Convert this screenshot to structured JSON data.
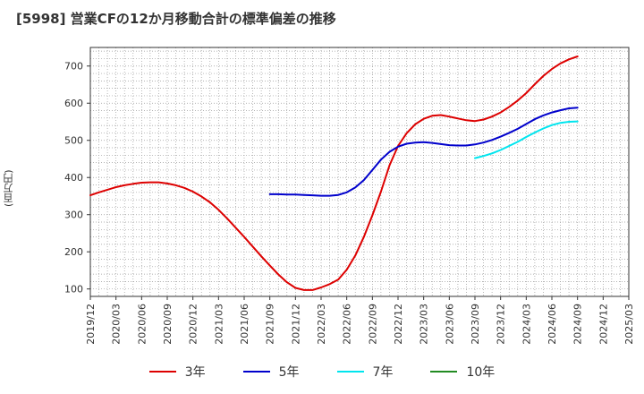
{
  "chart_data": {
    "type": "line",
    "title": "[5998]  営業CFの12か月移動合計の標準偏差の推移",
    "ylabel": "(百万円)",
    "xlabel": "",
    "ylim": [
      80,
      750
    ],
    "yticks": [
      100,
      200,
      300,
      400,
      500,
      600,
      700
    ],
    "xticks": [
      "2019/12",
      "2020/03",
      "2020/06",
      "2020/09",
      "2020/12",
      "2021/03",
      "2021/06",
      "2021/09",
      "2021/12",
      "2022/03",
      "2022/06",
      "2022/09",
      "2022/12",
      "2023/03",
      "2023/06",
      "2023/09",
      "2023/12",
      "2024/03",
      "2024/06",
      "2024/09",
      "2024/12",
      "2025/03"
    ],
    "grid": true,
    "legend_position": "bottom",
    "series": [
      {
        "name": "3年",
        "color": "#dd0000",
        "x": [
          "2019/12",
          "2020/01",
          "2020/02",
          "2020/03",
          "2020/04",
          "2020/05",
          "2020/06",
          "2020/07",
          "2020/08",
          "2020/09",
          "2020/10",
          "2020/11",
          "2020/12",
          "2021/01",
          "2021/02",
          "2021/03",
          "2021/04",
          "2021/05",
          "2021/06",
          "2021/07",
          "2021/08",
          "2021/09",
          "2021/10",
          "2021/11",
          "2021/12",
          "2022/01",
          "2022/02",
          "2022/03",
          "2022/04",
          "2022/05",
          "2022/06",
          "2022/07",
          "2022/08",
          "2022/09",
          "2022/10",
          "2022/11",
          "2022/12",
          "2023/01",
          "2023/02",
          "2023/03",
          "2023/04",
          "2023/05",
          "2023/06",
          "2023/07",
          "2023/08",
          "2023/09",
          "2023/10",
          "2023/11",
          "2023/12",
          "2024/01",
          "2024/02",
          "2024/03",
          "2024/04",
          "2024/05",
          "2024/06",
          "2024/07",
          "2024/08",
          "2024/09"
        ],
        "values": [
          352,
          360,
          367,
          374,
          379,
          383,
          386,
          387,
          387,
          384,
          379,
          372,
          362,
          349,
          333,
          313,
          290,
          265,
          240,
          214,
          188,
          163,
          139,
          118,
          103,
          97,
          97,
          104,
          113,
          125,
          152,
          190,
          240,
          298,
          362,
          432,
          485,
          519,
          543,
          558,
          566,
          568,
          564,
          559,
          554,
          552,
          556,
          564,
          575,
          590,
          607,
          627,
          651,
          673,
          692,
          707,
          718,
          726
        ]
      },
      {
        "name": "5年",
        "color": "#0000cc",
        "x": [
          "2021/09",
          "2021/10",
          "2021/11",
          "2021/12",
          "2022/01",
          "2022/02",
          "2022/03",
          "2022/04",
          "2022/05",
          "2022/06",
          "2022/07",
          "2022/08",
          "2022/09",
          "2022/10",
          "2022/11",
          "2022/12",
          "2023/01",
          "2023/02",
          "2023/03",
          "2023/04",
          "2023/05",
          "2023/06",
          "2023/07",
          "2023/08",
          "2023/09",
          "2023/10",
          "2023/11",
          "2023/12",
          "2024/01",
          "2024/02",
          "2024/03",
          "2024/04",
          "2024/05",
          "2024/06",
          "2024/07",
          "2024/08",
          "2024/09"
        ],
        "values": [
          355,
          355,
          354,
          354,
          353,
          352,
          351,
          351,
          353,
          360,
          373,
          393,
          420,
          448,
          469,
          483,
          491,
          494,
          495,
          493,
          490,
          487,
          486,
          486,
          489,
          494,
          501,
          510,
          520,
          531,
          544,
          557,
          567,
          575,
          581,
          586,
          588
        ]
      },
      {
        "name": "7年",
        "color": "#00e5ee",
        "x": [
          "2023/09",
          "2023/10",
          "2023/11",
          "2023/12",
          "2024/01",
          "2024/02",
          "2024/03",
          "2024/04",
          "2024/05",
          "2024/06",
          "2024/07",
          "2024/08",
          "2024/09"
        ],
        "values": [
          452,
          458,
          465,
          474,
          485,
          496,
          509,
          521,
          532,
          541,
          547,
          550,
          551
        ]
      },
      {
        "name": "10年",
        "color": "#228b22",
        "x": [],
        "values": []
      }
    ]
  }
}
